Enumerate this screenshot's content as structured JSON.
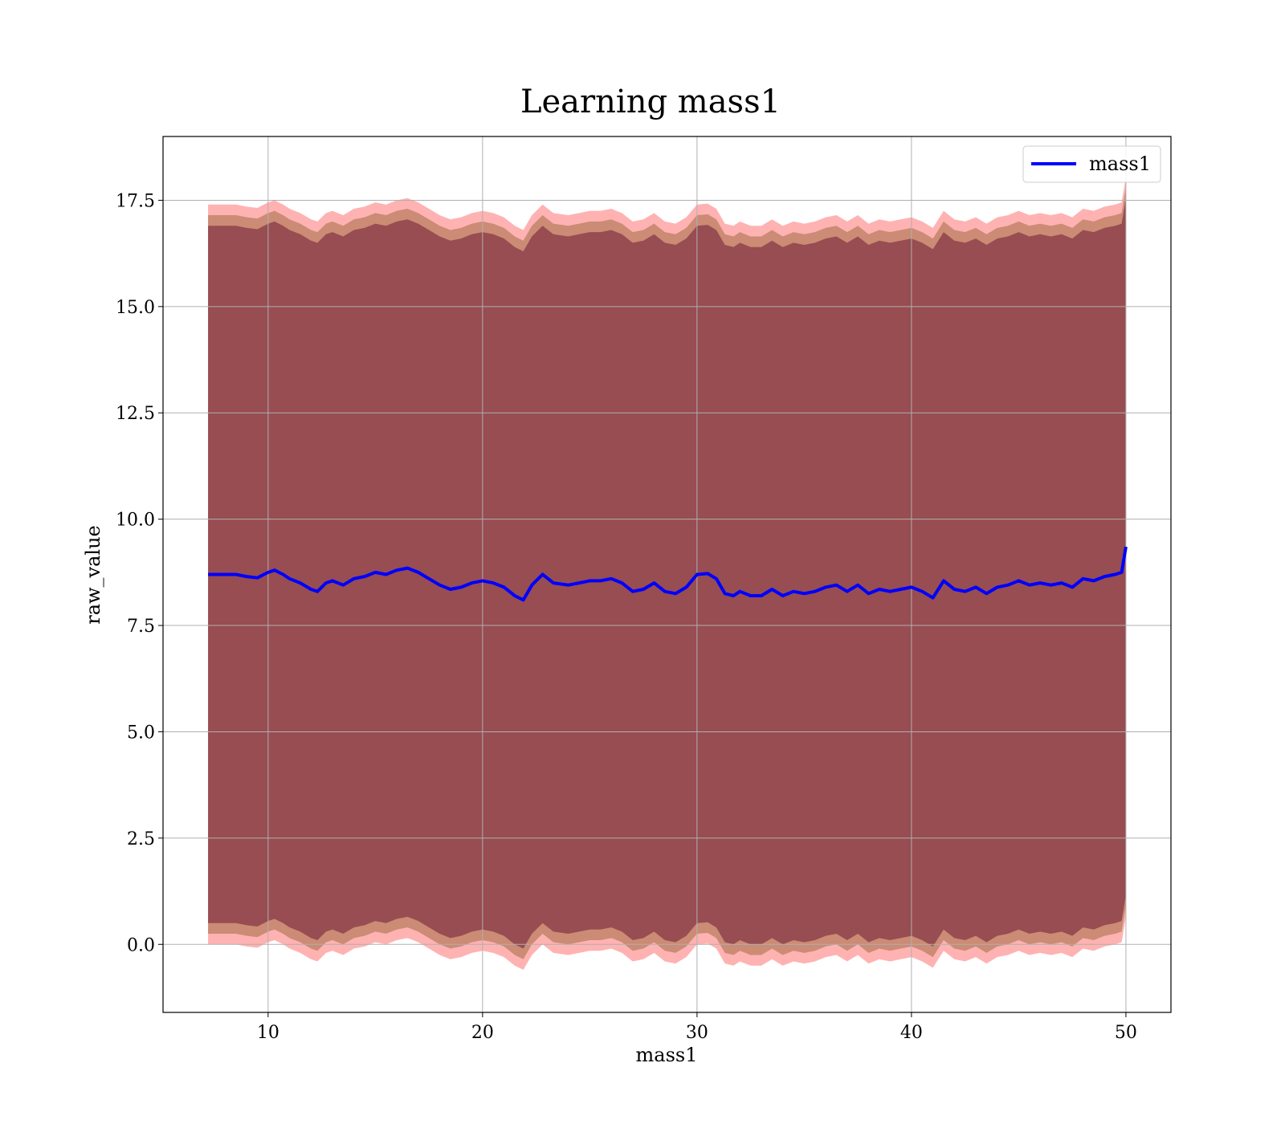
{
  "chart_data": {
    "type": "line",
    "title": "Learning mass1",
    "xlabel": "mass1",
    "ylabel": "raw_value",
    "xlim": [
      5.1,
      52.1
    ],
    "ylim": [
      -1.6,
      19.0
    ],
    "xticks": [
      10,
      20,
      30,
      40,
      50
    ],
    "xtick_labels": [
      "10",
      "20",
      "30",
      "40",
      "50"
    ],
    "yticks": [
      0.0,
      2.5,
      5.0,
      7.5,
      10.0,
      12.5,
      15.0,
      17.5
    ],
    "ytick_labels": [
      "0.0",
      "2.5",
      "5.0",
      "7.5",
      "10.0",
      "12.5",
      "15.0",
      "17.5"
    ],
    "grid": true,
    "legend_position": "top-right",
    "colors": {
      "line": "#0000ff",
      "band_outer": "#ff0000",
      "band_middle": "#8b5a2b",
      "band_inner": "#6e1c33",
      "grid": "#b0b0b0"
    },
    "series": [
      {
        "name": "mass1",
        "x": [
          7.2,
          8.0,
          8.5,
          9.0,
          9.5,
          10.0,
          10.3,
          10.7,
          11.0,
          11.5,
          12.0,
          12.3,
          12.7,
          13.0,
          13.5,
          14.0,
          14.5,
          15.0,
          15.5,
          16.0,
          16.5,
          17.0,
          17.5,
          18.0,
          18.5,
          19.0,
          19.5,
          20.0,
          20.5,
          21.0,
          21.5,
          21.9,
          22.3,
          22.8,
          23.3,
          24.0,
          24.5,
          25.0,
          25.5,
          26.0,
          26.5,
          27.0,
          27.5,
          28.0,
          28.5,
          29.0,
          29.5,
          30.0,
          30.5,
          30.9,
          31.3,
          31.7,
          32.0,
          32.5,
          33.0,
          33.5,
          34.0,
          34.5,
          35.0,
          35.5,
          36.0,
          36.5,
          37.0,
          37.5,
          38.0,
          38.5,
          39.0,
          39.5,
          40.0,
          40.5,
          41.0,
          41.5,
          42.0,
          42.5,
          43.0,
          43.5,
          44.0,
          44.5,
          45.0,
          45.5,
          46.0,
          46.5,
          47.0,
          47.5,
          48.0,
          48.5,
          49.0,
          49.5,
          49.8,
          50.0
        ],
        "y": [
          8.7,
          8.7,
          8.7,
          8.65,
          8.62,
          8.75,
          8.8,
          8.7,
          8.6,
          8.5,
          8.35,
          8.3,
          8.5,
          8.55,
          8.45,
          8.6,
          8.65,
          8.75,
          8.7,
          8.8,
          8.85,
          8.75,
          8.6,
          8.45,
          8.35,
          8.4,
          8.5,
          8.55,
          8.5,
          8.4,
          8.2,
          8.1,
          8.45,
          8.7,
          8.5,
          8.45,
          8.5,
          8.55,
          8.55,
          8.6,
          8.5,
          8.3,
          8.35,
          8.5,
          8.3,
          8.25,
          8.4,
          8.7,
          8.72,
          8.6,
          8.25,
          8.2,
          8.3,
          8.2,
          8.2,
          8.35,
          8.2,
          8.3,
          8.25,
          8.3,
          8.4,
          8.45,
          8.3,
          8.45,
          8.25,
          8.35,
          8.3,
          8.35,
          8.4,
          8.3,
          8.15,
          8.55,
          8.35,
          8.3,
          8.4,
          8.25,
          8.4,
          8.45,
          8.55,
          8.45,
          8.5,
          8.45,
          8.5,
          8.4,
          8.6,
          8.55,
          8.65,
          8.7,
          8.75,
          9.35
        ]
      }
    ],
    "bands": [
      {
        "label": "outer",
        "offset": 8.7,
        "stroke": 0.35
      },
      {
        "label": "middle",
        "offset": 8.45,
        "stroke": 0.2
      },
      {
        "label": "inner",
        "offset": 8.2,
        "stroke": 0.0
      }
    ]
  }
}
